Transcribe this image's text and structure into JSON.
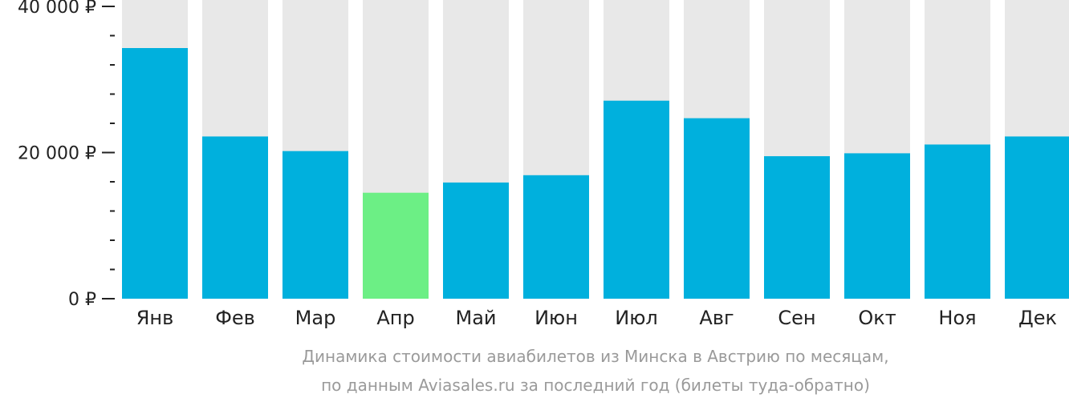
{
  "chart_data": {
    "type": "bar",
    "categories": [
      "Янв",
      "Фев",
      "Мар",
      "Апр",
      "Май",
      "Июн",
      "Июл",
      "Авг",
      "Сен",
      "Окт",
      "Ноя",
      "Дек"
    ],
    "values": [
      34300,
      22200,
      20200,
      14500,
      15900,
      16900,
      27100,
      24700,
      19500,
      19900,
      21100,
      22200
    ],
    "highlight_index": 3,
    "ylim": [
      0,
      40000
    ],
    "yticks": [
      {
        "value": 0,
        "label": "0 ₽"
      },
      {
        "value": 20000,
        "label": "20 000 ₽"
      },
      {
        "value": 40000,
        "label": "40 000 ₽"
      }
    ],
    "minor_tick_step": 4000,
    "caption_lines": [
      "Динамика стоимости авиабилетов из Минска в Австрию по месяцам,",
      "по данным Aviasales.ru за последний год (билеты туда-обратно)"
    ],
    "colors": {
      "bar": "#00b0dd",
      "highlight": "#6cef85",
      "track": "#e8e8e8",
      "axis": "#222222"
    }
  }
}
